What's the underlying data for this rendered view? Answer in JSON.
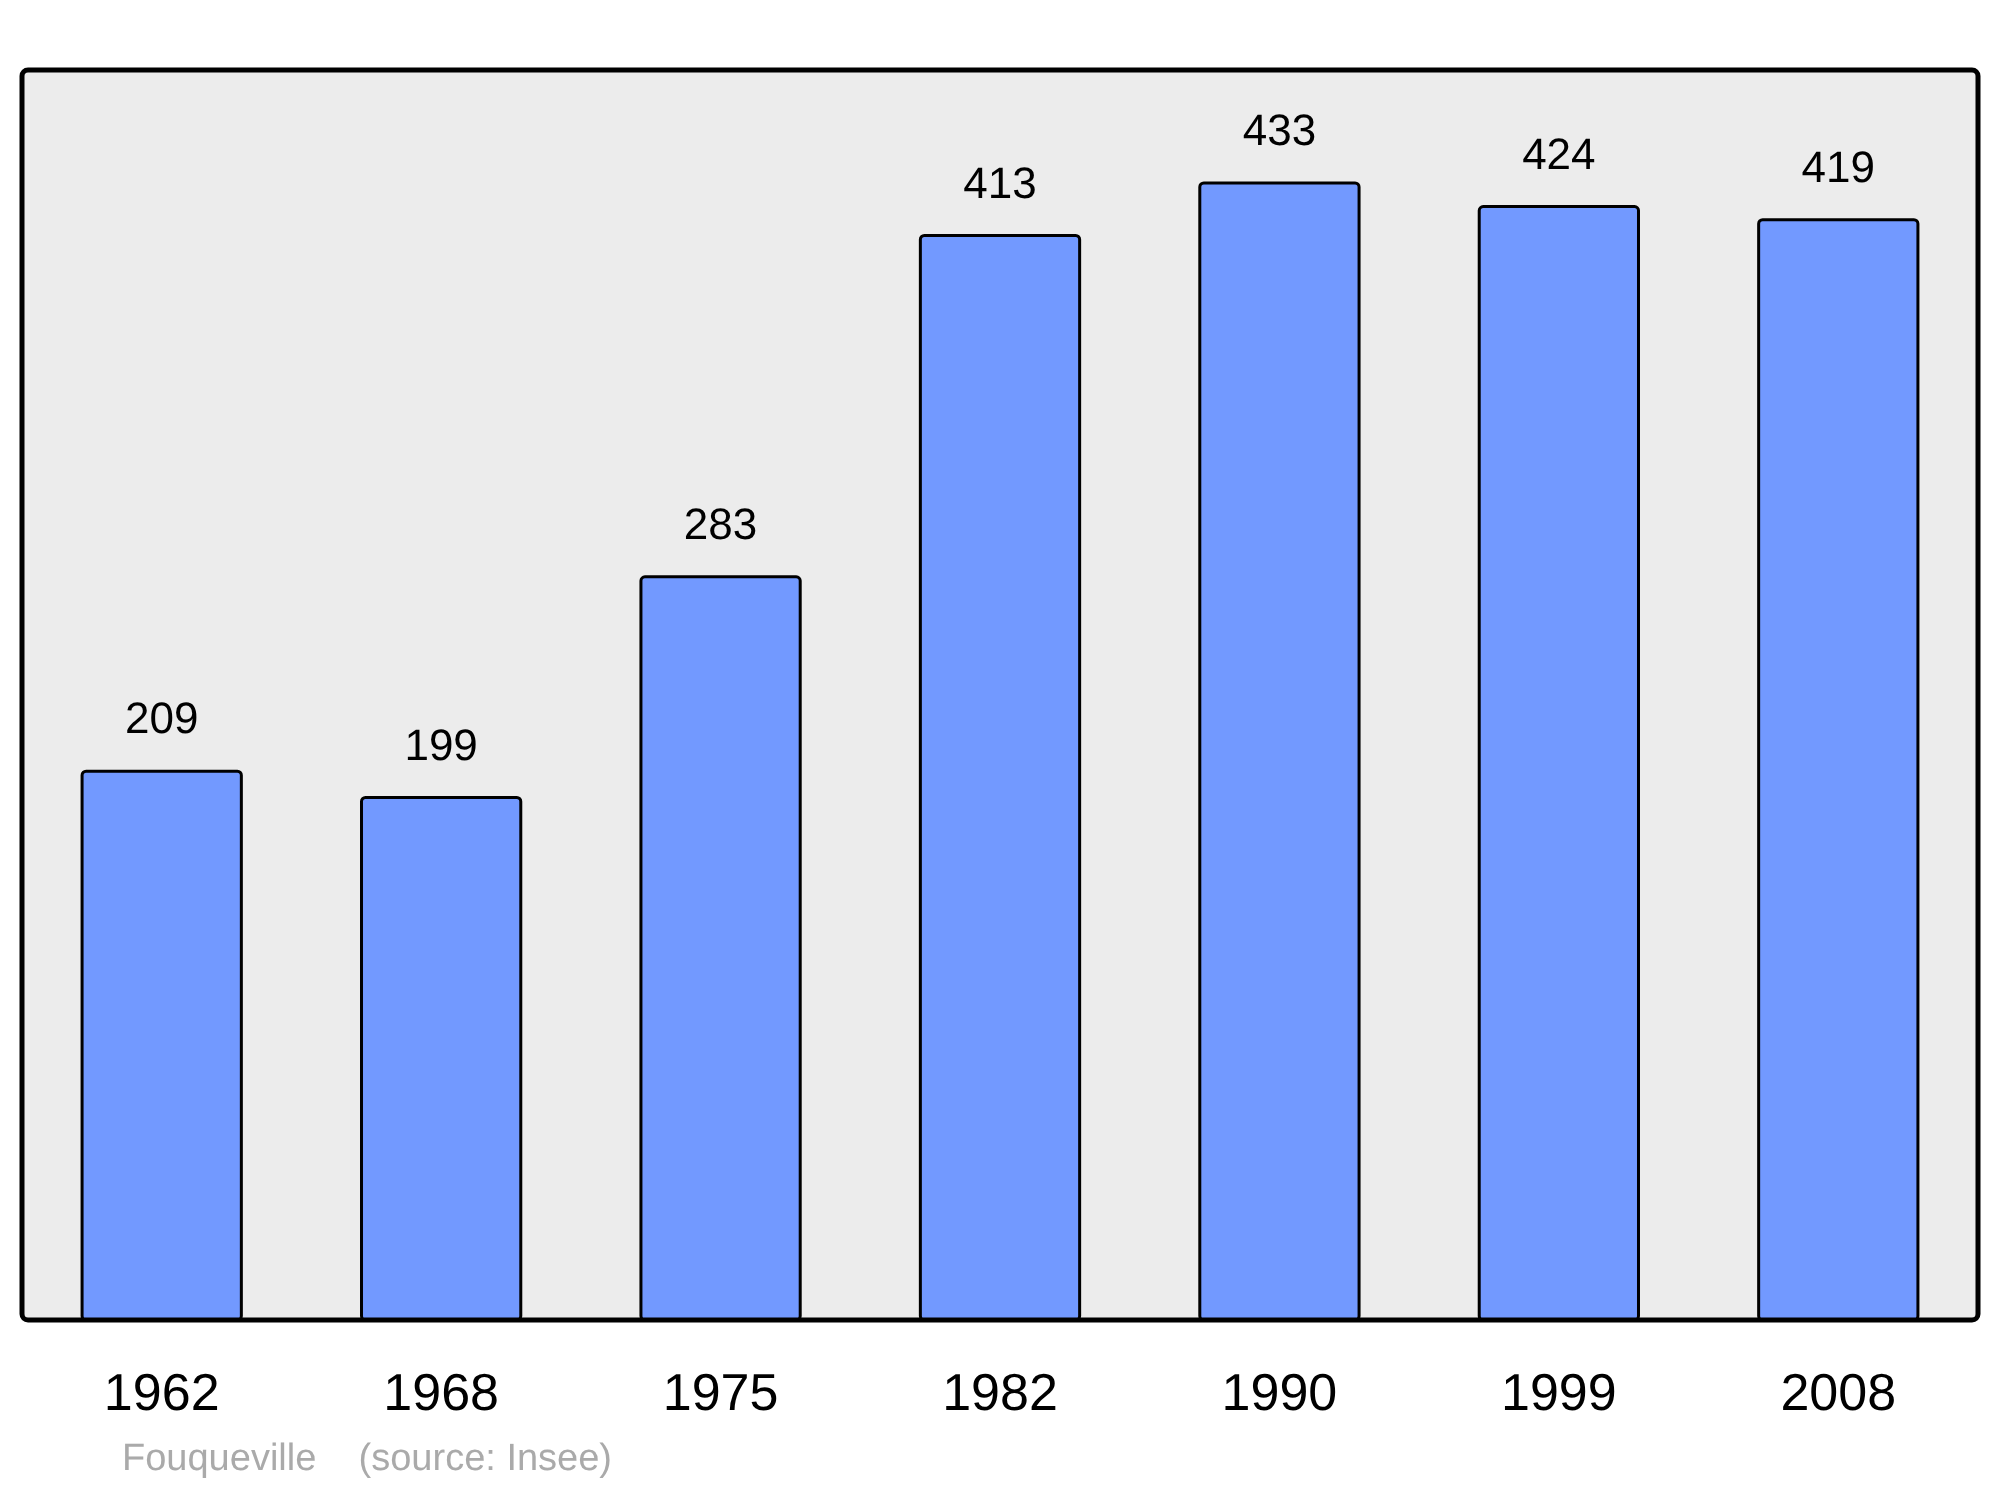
{
  "chart_data": {
    "type": "bar",
    "ylim": [
      0,
      476
    ],
    "tick_labels": "x",
    "data_labels": true,
    "categories": [
      "1962",
      "1968",
      "1975",
      "1982",
      "1990",
      "1999",
      "2008"
    ],
    "values": [
      209,
      199,
      283,
      413,
      433,
      424,
      419
    ],
    "color": "#7299ff",
    "annotations": [
      "Fouqueville    (source: Insee)"
    ]
  }
}
